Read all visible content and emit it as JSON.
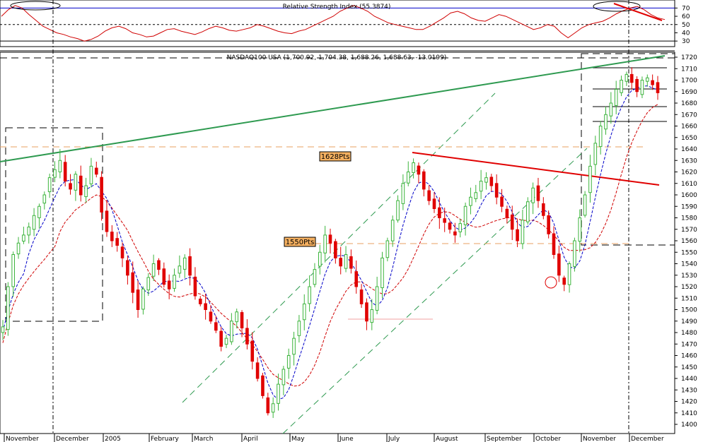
{
  "rsi_title": "Relative Strength Index (55.3874)",
  "price_title": "NASDAQ100 USA (1,700.92, 1,704.38, 1,688.26, 1,688.63, -13.0199)",
  "annotations": {
    "level_1628": "1628Pts",
    "level_1550": "1550Pts"
  },
  "colors": {
    "up": "#3cb43c",
    "down": "#e00000",
    "ma_short": "#0000c8",
    "ma_long": "#d00000",
    "trend_green": "#2e9a50",
    "trend_red": "#e00000",
    "channel": "#2e9a50",
    "support_orange": "#e8a060",
    "tag_fill": "#f5b060"
  },
  "chart_data": [
    {
      "type": "line",
      "name": "rsi-panel",
      "title": "Relative Strength Index (55.3874)",
      "ylim": [
        25,
        78
      ],
      "y_ticks": [
        30,
        40,
        50,
        60,
        70
      ],
      "reference_levels": [
        30,
        50,
        70
      ],
      "series": [
        {
          "values": [
            60,
            68,
            73,
            70,
            62,
            55,
            48,
            44,
            40,
            38,
            35,
            33,
            30,
            32,
            36,
            42,
            46,
            48,
            45,
            40,
            38,
            35,
            36,
            40,
            44,
            45,
            42,
            40,
            38,
            41,
            45,
            48,
            46,
            43,
            42,
            44,
            46,
            50,
            48,
            45,
            42,
            40,
            39,
            42,
            44,
            48,
            52,
            56,
            60,
            66,
            70,
            73,
            70,
            66,
            60,
            56,
            52,
            50,
            48,
            46,
            44,
            44,
            48,
            53,
            58,
            64,
            66,
            63,
            58,
            55,
            54,
            58,
            62,
            60,
            56,
            52,
            48,
            44,
            46,
            50,
            48,
            40,
            34,
            40,
            46,
            50,
            52,
            54,
            58,
            63,
            67,
            70,
            72,
            68,
            62,
            58,
            56
          ]
        }
      ]
    },
    {
      "type": "line",
      "name": "price-panel",
      "title": "NASDAQ100 USA (1,700.92, 1,704.38, 1,688.26, 1,688.63, -13.0199)",
      "ylim": [
        1395,
        1725
      ],
      "y_ticks": [
        1400,
        1410,
        1420,
        1430,
        1440,
        1450,
        1460,
        1470,
        1480,
        1490,
        1500,
        1510,
        1520,
        1530,
        1540,
        1550,
        1560,
        1570,
        1580,
        1590,
        1600,
        1610,
        1620,
        1630,
        1640,
        1650,
        1660,
        1670,
        1680,
        1690,
        1700,
        1710,
        1720
      ],
      "x_labels": [
        "November",
        "December",
        "2005",
        "February",
        "March",
        "April",
        "May",
        "June",
        "July",
        "August",
        "September",
        "October",
        "November",
        "December"
      ],
      "series": [
        {
          "name": "close",
          "values": [
            1485,
            1520,
            1548,
            1558,
            1565,
            1572,
            1582,
            1590,
            1600,
            1615,
            1622,
            1630,
            1612,
            1605,
            1618,
            1600,
            1608,
            1625,
            1618,
            1585,
            1568,
            1560,
            1556,
            1545,
            1530,
            1515,
            1500,
            1518,
            1528,
            1540,
            1535,
            1522,
            1518,
            1530,
            1538,
            1545,
            1530,
            1512,
            1505,
            1500,
            1490,
            1482,
            1468,
            1475,
            1490,
            1498,
            1484,
            1470,
            1455,
            1440,
            1425,
            1410,
            1418,
            1435,
            1448,
            1460,
            1475,
            1490,
            1505,
            1520,
            1535,
            1550,
            1565,
            1558,
            1545,
            1538,
            1548,
            1536,
            1520,
            1505,
            1490,
            1500,
            1520,
            1545,
            1560,
            1578,
            1595,
            1610,
            1620,
            1628,
            1618,
            1605,
            1595,
            1588,
            1580,
            1576,
            1570,
            1565,
            1575,
            1590,
            1598,
            1602,
            1612,
            1615,
            1608,
            1598,
            1590,
            1580,
            1570,
            1560,
            1578,
            1594,
            1606,
            1595,
            1582,
            1566,
            1548,
            1530,
            1522,
            1540,
            1560,
            1580,
            1600,
            1625,
            1645,
            1660,
            1670,
            1680,
            1692,
            1700,
            1705,
            1698,
            1690,
            1700,
            1702,
            1696,
            1689
          ]
        }
      ],
      "text_labels": [
        "1628Pts",
        "1550Pts"
      ]
    }
  ]
}
